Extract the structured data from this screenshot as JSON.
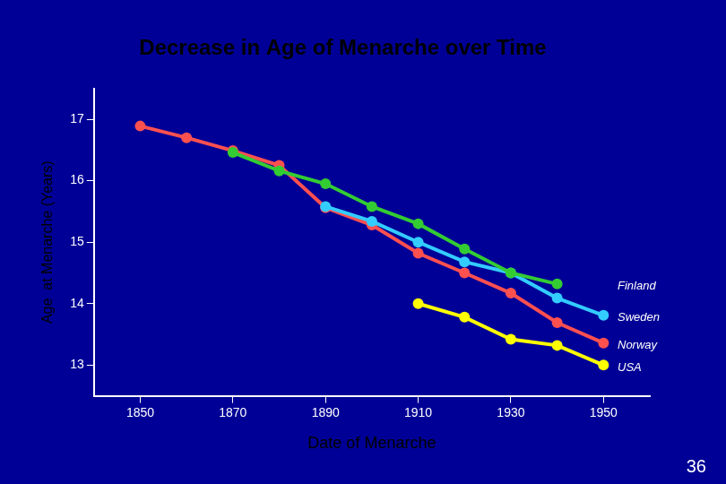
{
  "chart_data": {
    "type": "line",
    "title": "Decrease in Age of Menarche over Time",
    "x_label": "Date of Menarche",
    "y_label": "Age  at Menarche (Years)",
    "series": [
      {
        "name": "Finland",
        "color": "#33cc33",
        "marker": "circle",
        "x": [
          1870,
          1880,
          1890,
          1900,
          1910,
          1920,
          1930,
          1940
        ],
        "values": [
          16.46,
          16.16,
          15.95,
          15.58,
          15.3,
          14.89,
          14.5,
          14.32
        ]
      },
      {
        "name": "Sweden",
        "color": "#33ccff",
        "marker": "circle",
        "x": [
          1890,
          1900,
          1910,
          1920,
          1930,
          1940,
          1950
        ],
        "values": [
          15.58,
          15.34,
          15.0,
          14.68,
          14.5,
          14.09,
          13.81
        ]
      },
      {
        "name": "Norway",
        "color": "#ff5050",
        "marker": "circle",
        "x": [
          1850,
          1860,
          1870,
          1880,
          1890,
          1900,
          1910,
          1920,
          1930,
          1940,
          1950
        ],
        "values": [
          16.89,
          16.7,
          16.49,
          16.25,
          15.56,
          15.28,
          14.82,
          14.5,
          14.17,
          13.69,
          13.36
        ]
      },
      {
        "name": "USA",
        "color": "#ffff00",
        "marker": "circle",
        "x": [
          1910,
          1920,
          1930,
          1940,
          1950
        ],
        "values": [
          14.0,
          13.78,
          13.42,
          13.32,
          13.0
        ]
      }
    ],
    "xlim": [
      1840,
      1960
    ],
    "xticks": [
      1850,
      1870,
      1890,
      1910,
      1930,
      1950
    ],
    "ylim": [
      12.5,
      17.5
    ],
    "yticks": [
      13,
      14,
      15,
      16,
      17
    ],
    "grid": false,
    "annotations": [
      "36"
    ]
  }
}
